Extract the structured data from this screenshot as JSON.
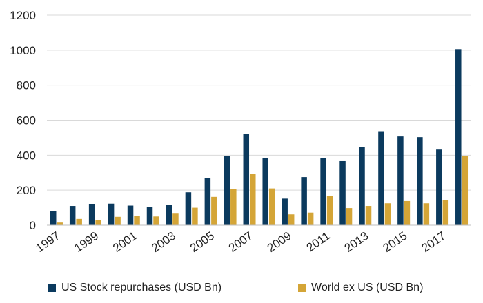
{
  "chart_data": {
    "type": "bar",
    "x": [
      1997,
      1998,
      1999,
      2000,
      2001,
      2002,
      2003,
      2004,
      2005,
      2006,
      2007,
      2008,
      2009,
      2010,
      2011,
      2012,
      2013,
      2014,
      2015,
      2016,
      2017,
      2018
    ],
    "x_tick_labels": [
      "1997",
      "1999",
      "2001",
      "2003",
      "2005",
      "2007",
      "2009",
      "2011",
      "2013",
      "2015",
      "2017"
    ],
    "series": [
      {
        "name": "US Stock repurchases (USD Bn)",
        "color": "#0b3a5e",
        "values": [
          80,
          110,
          122,
          123,
          112,
          106,
          117,
          188,
          270,
          395,
          520,
          382,
          152,
          275,
          385,
          366,
          447,
          537,
          507,
          503,
          432,
          1006
        ]
      },
      {
        "name": "World ex US (USD Bn)",
        "color": "#d4a537",
        "values": [
          15,
          36,
          28,
          48,
          52,
          50,
          66,
          100,
          162,
          205,
          295,
          210,
          62,
          72,
          167,
          98,
          110,
          125,
          138,
          125,
          142,
          395
        ]
      }
    ],
    "ylim": [
      0,
      1200
    ],
    "yticks": [
      0,
      200,
      400,
      600,
      800,
      1000,
      1200
    ],
    "grid": true,
    "legend": "bottom",
    "title": "",
    "xlabel": "",
    "ylabel": ""
  }
}
